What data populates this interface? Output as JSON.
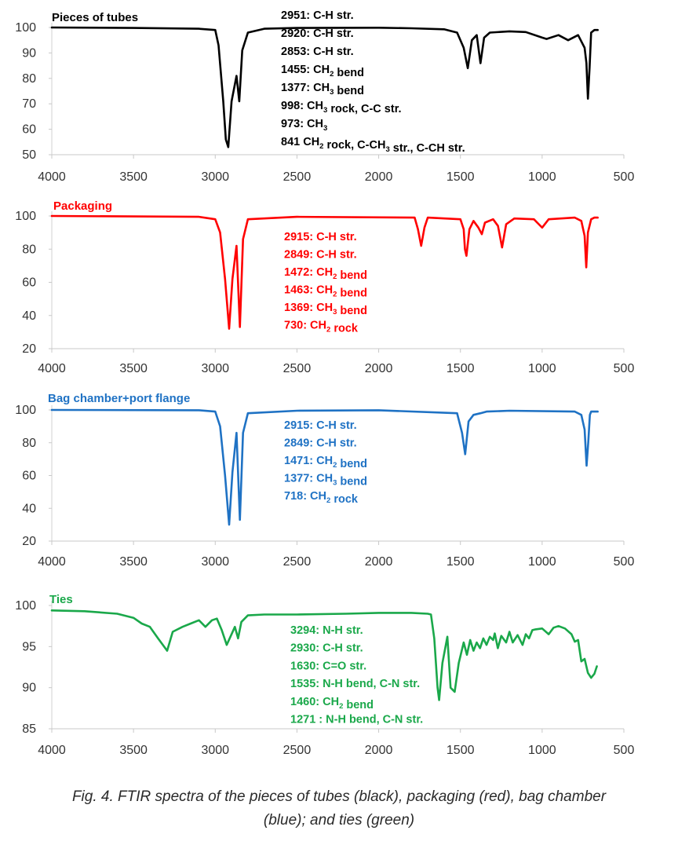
{
  "caption": {
    "line1": "Fig. 4. FTIR spectra of the pieces of tubes (black), packaging (red), bag chamber",
    "line2": "(blue); and ties (green)"
  },
  "chart_data": [
    {
      "type": "line",
      "title": "Pieces of tubes",
      "color": "#000000",
      "xlim": [
        4000,
        500
      ],
      "ylim": [
        50,
        100
      ],
      "xticks": [
        4000,
        3500,
        3000,
        2500,
        2000,
        1500,
        1000,
        500
      ],
      "yticks": [
        100,
        90,
        80,
        70,
        60,
        50
      ],
      "grid": false,
      "series": [
        {
          "x": [
            4000,
            3500,
            3100,
            3000,
            2980,
            2951,
            2935,
            2920,
            2900,
            2870,
            2853,
            2835,
            2800,
            2700,
            2500,
            2000,
            1800,
            1600,
            1520,
            1480,
            1455,
            1430,
            1400,
            1377,
            1355,
            1320,
            1200,
            1100,
            998,
            973,
            900,
            841,
            780,
            740,
            729,
            720,
            710,
            700,
            680,
            660
          ],
          "y": [
            100,
            99.8,
            99.5,
            99,
            93,
            71,
            56,
            53,
            71,
            81,
            71,
            91,
            98,
            99.5,
            99.8,
            99.9,
            99.7,
            99.3,
            98,
            92,
            84,
            95,
            97,
            86,
            96,
            98,
            98.5,
            98.2,
            96,
            95.5,
            97,
            95,
            97,
            92,
            86,
            72,
            84,
            98,
            99,
            99
          ]
        }
      ],
      "annotations": [
        {
          "id": "a1",
          "base": "2951: C-H str."
        },
        {
          "id": "a2",
          "base": "2920: C-H str."
        },
        {
          "id": "a3",
          "base": "2853: C-H str."
        },
        {
          "id": "a4",
          "base": "1455: CH",
          "sub": "2",
          "after": " bend"
        },
        {
          "id": "a5",
          "base": "1377: CH",
          "sub": "3",
          "after": " bend"
        },
        {
          "id": "a6",
          "base": "998: CH",
          "sub": "3",
          "after": " rock, C-C str."
        },
        {
          "id": "a7",
          "base": "973: CH",
          "sub": "3",
          "after": ""
        },
        {
          "id": "a8",
          "base": "841 CH",
          "sub": "2",
          "after": " rock, C-CH",
          "sub2": "3",
          "after2": " str., C-CH str."
        }
      ]
    },
    {
      "type": "line",
      "title": "Packaging",
      "color": "#ff0000",
      "xlim": [
        4000,
        500
      ],
      "ylim": [
        20,
        100
      ],
      "xticks": [
        4000,
        3500,
        3000,
        2500,
        2000,
        1500,
        1000,
        500
      ],
      "yticks": [
        100,
        80,
        60,
        40,
        20
      ],
      "grid": false,
      "series": [
        {
          "x": [
            4000,
            3100,
            3000,
            2970,
            2940,
            2915,
            2895,
            2870,
            2849,
            2830,
            2800,
            2500,
            1780,
            1760,
            1740,
            1720,
            1700,
            1500,
            1480,
            1472,
            1463,
            1445,
            1420,
            1390,
            1369,
            1350,
            1300,
            1270,
            1245,
            1220,
            1170,
            1050,
            1020,
            1000,
            960,
            800,
            760,
            740,
            730,
            720,
            700,
            680,
            660
          ],
          "y": [
            100,
            99.5,
            98,
            90,
            62,
            32,
            62,
            82,
            33,
            86,
            98,
            99.5,
            99,
            92,
            82,
            93,
            99,
            98,
            92,
            80,
            76,
            92,
            97,
            93,
            89,
            96,
            98,
            94,
            81,
            95,
            98.5,
            98,
            95,
            93,
            98,
            99,
            97,
            88,
            69,
            90,
            98,
            99,
            99
          ]
        }
      ],
      "annotations": [
        {
          "id": "b1",
          "base": "2915: C-H str."
        },
        {
          "id": "b2",
          "base": "2849: C-H str."
        },
        {
          "id": "b3",
          "base": "1472: CH",
          "sub": "2",
          "after": " bend"
        },
        {
          "id": "b4",
          "base": "1463: CH",
          "sub": "2",
          "after": " bend"
        },
        {
          "id": "b5",
          "base": "1369: CH",
          "sub": "3",
          "after": " bend"
        },
        {
          "id": "b6",
          "base": "730: CH",
          "sub": "2",
          "after": " rock"
        }
      ]
    },
    {
      "type": "line",
      "title": "Bag chamber+port flange",
      "color": "#1f72c4",
      "xlim": [
        4000,
        500
      ],
      "ylim": [
        20,
        100
      ],
      "xticks": [
        4000,
        3500,
        3000,
        2500,
        2000,
        1500,
        1000,
        500
      ],
      "yticks": [
        100,
        80,
        60,
        40,
        20
      ],
      "grid": false,
      "series": [
        {
          "x": [
            4000,
            3100,
            3000,
            2970,
            2940,
            2915,
            2895,
            2870,
            2849,
            2830,
            2800,
            2500,
            2000,
            1520,
            1490,
            1471,
            1450,
            1420,
            1377,
            1340,
            1200,
            800,
            760,
            740,
            728,
            718,
            708,
            700,
            680,
            660
          ],
          "y": [
            100,
            99.8,
            99,
            90,
            60,
            30,
            62,
            86,
            33,
            86,
            98,
            99.5,
            99.8,
            98,
            86,
            73,
            93,
            97,
            98,
            99,
            99.5,
            99,
            97,
            88,
            66,
            80,
            97,
            99,
            99,
            99
          ]
        }
      ],
      "annotations": [
        {
          "id": "c1",
          "base": "2915: C-H str."
        },
        {
          "id": "c2",
          "base": "2849: C-H str."
        },
        {
          "id": "c3",
          "base": "1471: CH",
          "sub": "2",
          "after": " bend"
        },
        {
          "id": "c4",
          "base": "1377: CH",
          "sub": "3",
          "after": " bend"
        },
        {
          "id": "c5",
          "base": "718: CH",
          "sub": "2",
          "after": " rock"
        }
      ]
    },
    {
      "type": "line",
      "title": "Ties",
      "color": "#1aa84a",
      "xlim": [
        4000,
        500
      ],
      "ylim": [
        85,
        100
      ],
      "xticks": [
        4000,
        3500,
        3000,
        2500,
        2000,
        1500,
        1000,
        500
      ],
      "yticks": [
        100,
        95,
        90,
        85
      ],
      "grid": false,
      "series": [
        {
          "x": [
            4000,
            3800,
            3600,
            3500,
            3450,
            3400,
            3350,
            3294,
            3260,
            3200,
            3150,
            3100,
            3060,
            3020,
            2990,
            2960,
            2930,
            2900,
            2880,
            2860,
            2840,
            2800,
            2700,
            2500,
            2200,
            2000,
            1800,
            1700,
            1680,
            1660,
            1640,
            1630,
            1610,
            1580,
            1560,
            1535,
            1510,
            1480,
            1460,
            1440,
            1420,
            1400,
            1380,
            1360,
            1340,
            1320,
            1300,
            1290,
            1271,
            1250,
            1220,
            1200,
            1180,
            1150,
            1120,
            1100,
            1080,
            1060,
            1040,
            1000,
            960,
            930,
            900,
            860,
            820,
            800,
            780,
            760,
            740,
            720,
            700,
            680,
            665
          ],
          "y": [
            99.4,
            99.3,
            99,
            98.5,
            97.8,
            97.4,
            96,
            94.5,
            96.8,
            97.4,
            97.8,
            98.2,
            97.4,
            98.2,
            98.4,
            97,
            95.2,
            96.5,
            97.4,
            96,
            98,
            98.8,
            98.9,
            98.9,
            99,
            99.1,
            99.1,
            99,
            98.9,
            96,
            90,
            88.5,
            93,
            96.2,
            90,
            89.5,
            93,
            95.5,
            94,
            95.8,
            94.5,
            95.5,
            94.8,
            96,
            95.2,
            96.2,
            95.8,
            96.6,
            94.8,
            96.3,
            95.5,
            96.8,
            95.5,
            96.4,
            95.2,
            96.5,
            96,
            97,
            97.1,
            97.2,
            96.5,
            97.3,
            97.5,
            97.2,
            96.5,
            95.6,
            95.8,
            93.2,
            93.5,
            91.8,
            91.2,
            91.7,
            92.6
          ]
        }
      ],
      "annotations": [
        {
          "id": "d1",
          "base": "3294: N-H str."
        },
        {
          "id": "d2",
          "base": "2930: C-H str."
        },
        {
          "id": "d3",
          "base": "1630: C=O str."
        },
        {
          "id": "d4",
          "base": "1535: N-H bend, C-N str."
        },
        {
          "id": "d5",
          "base": "1460: CH",
          "sub": "2",
          "after": " bend"
        },
        {
          "id": "d6",
          "base": "1271 : N-H bend, C-N str."
        }
      ]
    }
  ]
}
